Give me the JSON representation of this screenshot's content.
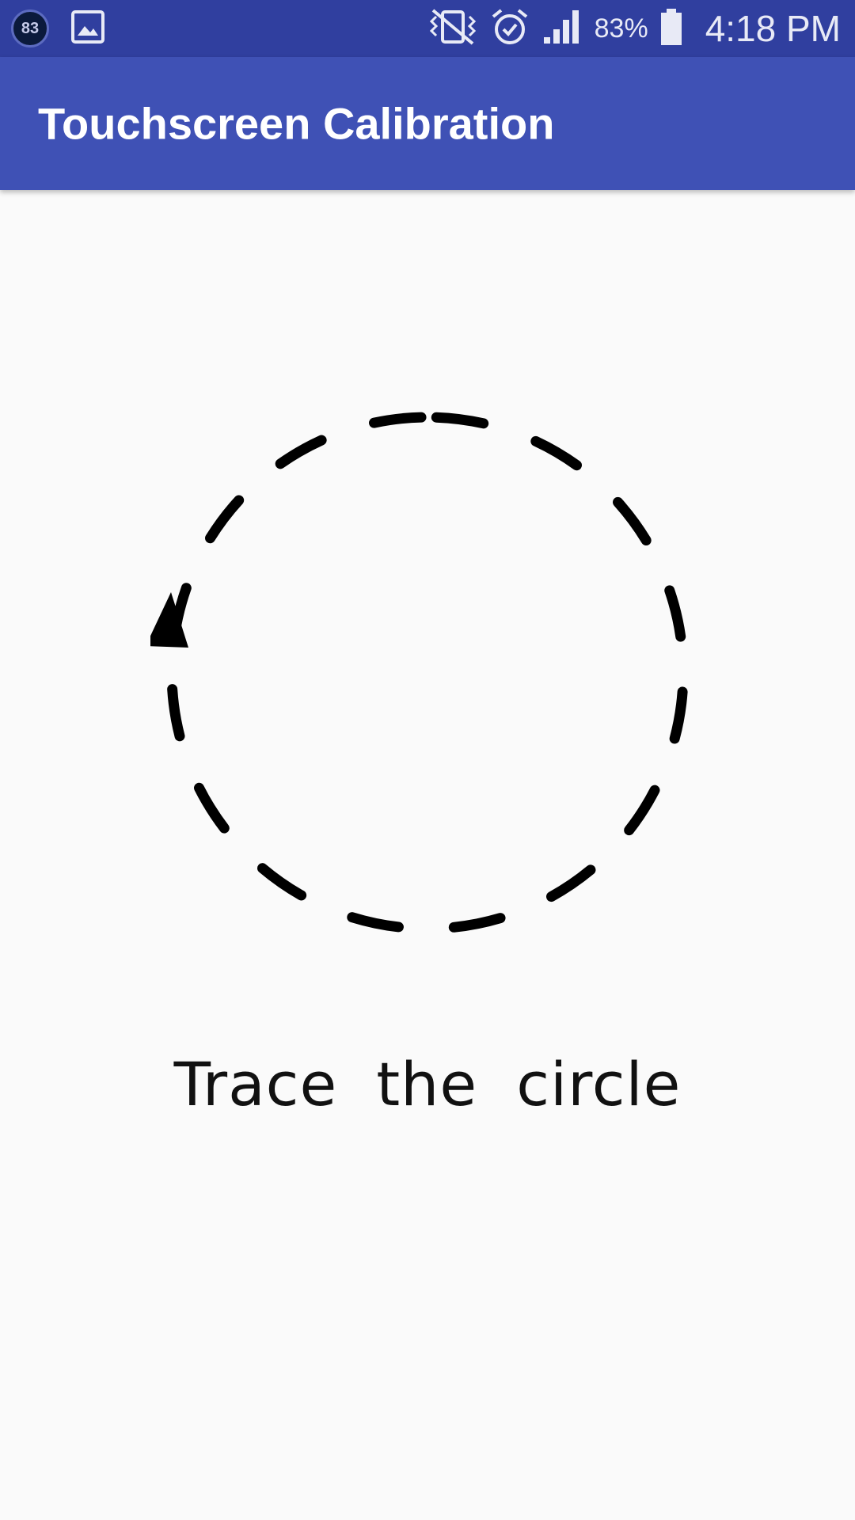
{
  "status_bar": {
    "notification_badge": "83",
    "battery_percent": "83%",
    "time": "4:18 PM",
    "icons": [
      "gallery-icon",
      "vibrate-icon",
      "alarm-icon",
      "signal-icon",
      "battery-icon"
    ]
  },
  "app_bar": {
    "title": "Touchscreen Calibration",
    "color": "#3F51B5"
  },
  "main": {
    "instruction": "Trace the circle",
    "icons": [
      "dashed-circle-icon",
      "counterclockwise-arrow-icon"
    ]
  },
  "colors": {
    "status_bar": "#303F9F",
    "app_bar": "#3F51B5",
    "background": "#FAFAFA",
    "stroke": "#000000"
  }
}
